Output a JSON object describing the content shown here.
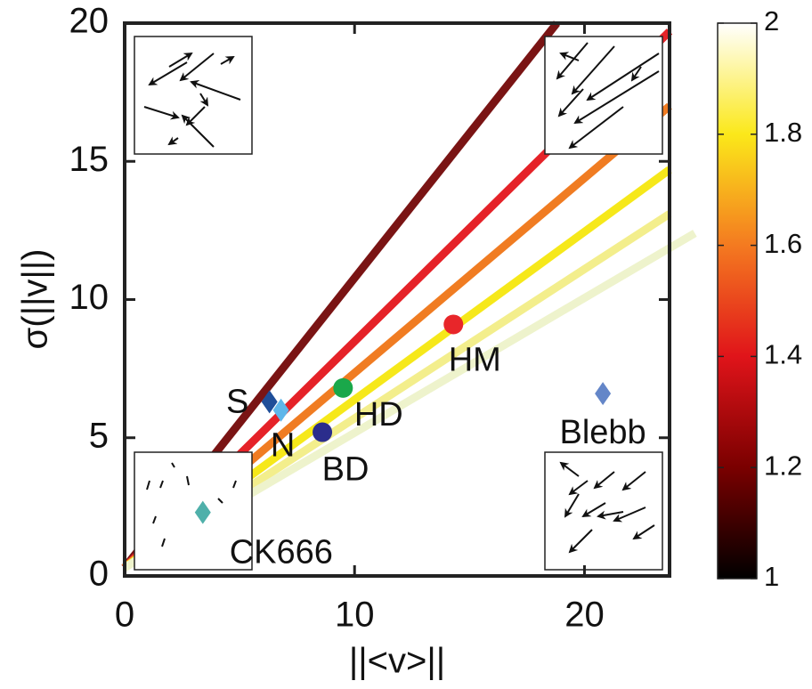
{
  "chart_data": {
    "type": "line",
    "xlabel": "||<v>||",
    "ylabel": "σ(||v||)",
    "xlim": [
      0,
      23.7
    ],
    "ylim": [
      0,
      20
    ],
    "xticks": [
      0,
      10,
      20
    ],
    "yticks": [
      0,
      5,
      10,
      15,
      20
    ],
    "series": [
      {
        "color": "#7a1414",
        "x": [
          0,
          18.8
        ],
        "values": [
          0.3,
          20
        ]
      },
      {
        "color": "#e52228",
        "x": [
          0,
          23.7
        ],
        "values": [
          0.3,
          19.7
        ]
      },
      {
        "color": "#f07c22",
        "x": [
          0,
          23.7
        ],
        "values": [
          0.3,
          17.0
        ]
      },
      {
        "color": "#f6e81a",
        "x": [
          0,
          23.7
        ],
        "values": [
          0.3,
          14.7
        ]
      },
      {
        "color": "#f3ee8c",
        "x": [
          0,
          23.7
        ],
        "values": [
          0.3,
          13.1
        ]
      },
      {
        "color": "#eef3cc",
        "x": [
          0,
          24.8
        ],
        "values": [
          0.3,
          12.4
        ]
      }
    ],
    "points": [
      {
        "label": "S",
        "x": 6.3,
        "y": 6.3,
        "color": "#1f4e99",
        "marker": "diamond"
      },
      {
        "label": "N",
        "x": 6.8,
        "y": 6.0,
        "color": "#5fb6ea",
        "marker": "diamond"
      },
      {
        "label": "HD",
        "x": 9.5,
        "y": 6.8,
        "color": "#1aa84a",
        "marker": "circle"
      },
      {
        "label": "BD",
        "x": 8.6,
        "y": 5.2,
        "color": "#2b2d8c",
        "marker": "circle"
      },
      {
        "label": "HM",
        "x": 14.3,
        "y": 9.1,
        "color": "#e8262a",
        "marker": "circle"
      },
      {
        "label": "Blebb",
        "x": 20.8,
        "y": 6.6,
        "color": "#6486c8",
        "marker": "diamond"
      },
      {
        "label": "CK666",
        "x": 3.4,
        "y": 2.3,
        "color": "#4fb0aa",
        "marker": "diamond"
      }
    ],
    "colorbar": {
      "lim": [
        1,
        2
      ],
      "ticks": [
        1,
        1.2,
        1.4,
        1.6,
        1.8,
        2
      ],
      "colormap": [
        "#000000",
        "#7a0000",
        "#e0141a",
        "#f47a20",
        "#fbe81a",
        "#ffffff"
      ]
    }
  }
}
